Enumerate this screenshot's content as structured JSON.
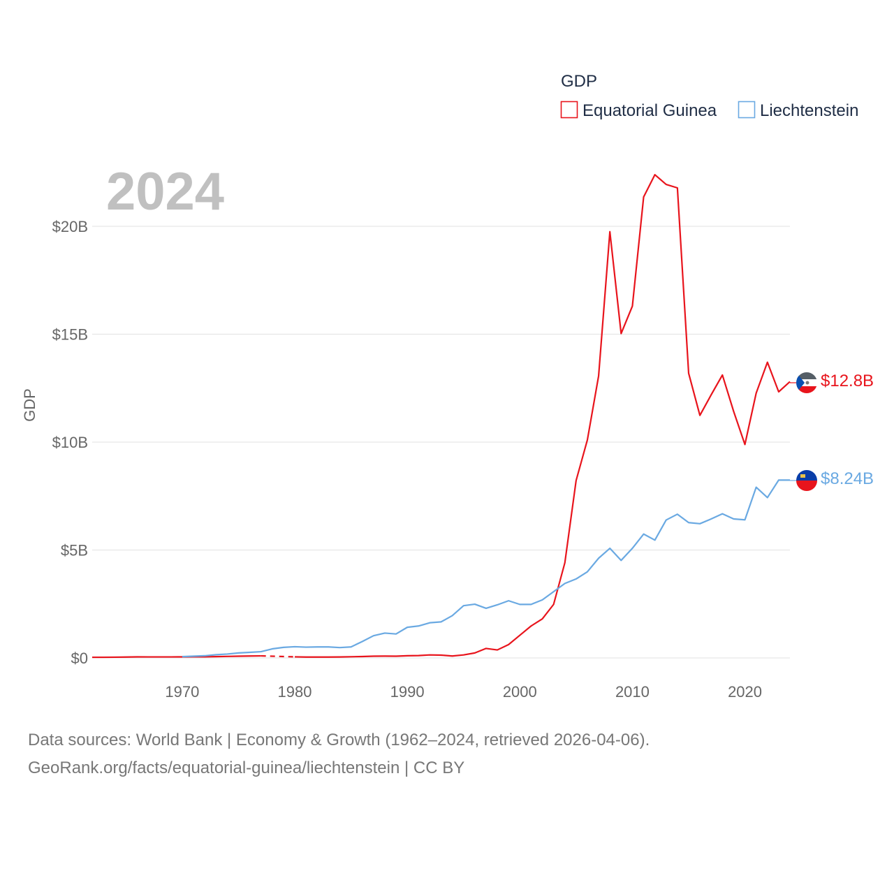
{
  "chart_data": {
    "type": "line",
    "ylabel": "GDP",
    "year_label": "2024",
    "legend_title": "GDP",
    "ylim": [
      0,
      23000000000
    ],
    "xlim": [
      1962,
      2024
    ],
    "y_ticks": [
      {
        "value": 0,
        "label": "$0"
      },
      {
        "value": 5000000000,
        "label": "$5B"
      },
      {
        "value": 10000000000,
        "label": "$10B"
      },
      {
        "value": 15000000000,
        "label": "$15B"
      },
      {
        "value": 20000000000,
        "label": "$20B"
      }
    ],
    "x_ticks": [
      {
        "value": 1970,
        "label": "1970"
      },
      {
        "value": 1980,
        "label": "1980"
      },
      {
        "value": 1990,
        "label": "1990"
      },
      {
        "value": 2000,
        "label": "2000"
      },
      {
        "value": 2010,
        "label": "2010"
      },
      {
        "value": 2020,
        "label": "2020"
      }
    ],
    "series": [
      {
        "name": "Equatorial Guinea",
        "color": "#e8141c",
        "end_label": "$12.8B",
        "gap": [
          1977,
          1980
        ],
        "x": [
          1962,
          1963,
          1964,
          1965,
          1966,
          1967,
          1968,
          1969,
          1970,
          1971,
          1972,
          1973,
          1974,
          1975,
          1976,
          1977,
          1980,
          1981,
          1982,
          1983,
          1984,
          1985,
          1986,
          1987,
          1988,
          1989,
          1990,
          1991,
          1992,
          1993,
          1994,
          1995,
          1996,
          1997,
          1998,
          1999,
          2000,
          2001,
          2002,
          2003,
          2004,
          2005,
          2006,
          2007,
          2008,
          2009,
          2010,
          2011,
          2012,
          2013,
          2014,
          2015,
          2016,
          2017,
          2018,
          2019,
          2020,
          2021,
          2022,
          2023,
          2024
        ],
        "values": [
          30000000,
          31000000,
          34000000,
          41000000,
          48000000,
          47000000,
          46000000,
          47000000,
          48000000,
          50000000,
          52000000,
          60000000,
          70000000,
          80000000,
          90000000,
          95000000,
          50000000,
          40000000,
          40000000,
          40000000,
          45000000,
          55000000,
          65000000,
          80000000,
          85000000,
          80000000,
          100000000,
          110000000,
          140000000,
          130000000,
          90000000,
          140000000,
          230000000,
          440000000,
          370000000,
          620000000,
          1050000000,
          1480000000,
          1810000000,
          2480000000,
          4410000000,
          8220000000,
          10100000000,
          13070000000,
          19750000000,
          15030000000,
          16300000000,
          21360000000,
          22390000000,
          21940000000,
          21780000000,
          13190000000,
          11240000000,
          12190000000,
          13110000000,
          11420000000,
          9890000000,
          12270000000,
          13700000000,
          12330000000,
          12800000000
        ]
      },
      {
        "name": "Liechtenstein",
        "color": "#6aa9e2",
        "end_label": "$8.24B",
        "x": [
          1970,
          1971,
          1972,
          1973,
          1974,
          1975,
          1976,
          1977,
          1978,
          1979,
          1980,
          1981,
          1982,
          1983,
          1984,
          1985,
          1986,
          1987,
          1988,
          1989,
          1990,
          1991,
          1992,
          1993,
          1994,
          1995,
          1996,
          1997,
          1998,
          1999,
          2000,
          2001,
          2002,
          2003,
          2004,
          2005,
          2006,
          2007,
          2008,
          2009,
          2010,
          2011,
          2012,
          2013,
          2014,
          2015,
          2016,
          2017,
          2018,
          2019,
          2020,
          2021,
          2022,
          2023,
          2024
        ],
        "values": [
          60000000,
          80000000,
          100000000,
          150000000,
          180000000,
          230000000,
          260000000,
          290000000,
          420000000,
          490000000,
          520000000,
          500000000,
          510000000,
          510000000,
          480000000,
          510000000,
          760000000,
          1030000000,
          1150000000,
          1110000000,
          1420000000,
          1480000000,
          1630000000,
          1670000000,
          1960000000,
          2420000000,
          2490000000,
          2300000000,
          2460000000,
          2650000000,
          2480000000,
          2480000000,
          2690000000,
          3070000000,
          3450000000,
          3660000000,
          3990000000,
          4620000000,
          5080000000,
          4520000000,
          5080000000,
          5740000000,
          5460000000,
          6390000000,
          6660000000,
          6270000000,
          6220000000,
          6440000000,
          6680000000,
          6440000000,
          6400000000,
          7910000000,
          7430000000,
          8240000000,
          8240000000
        ]
      }
    ]
  },
  "source": {
    "line1": "Data sources: World Bank | Economy & Growth (1962–2024, retrieved 2026-04-06).",
    "line2": "GeoRank.org/facts/equatorial-guinea/liechtenstein | CC BY"
  }
}
